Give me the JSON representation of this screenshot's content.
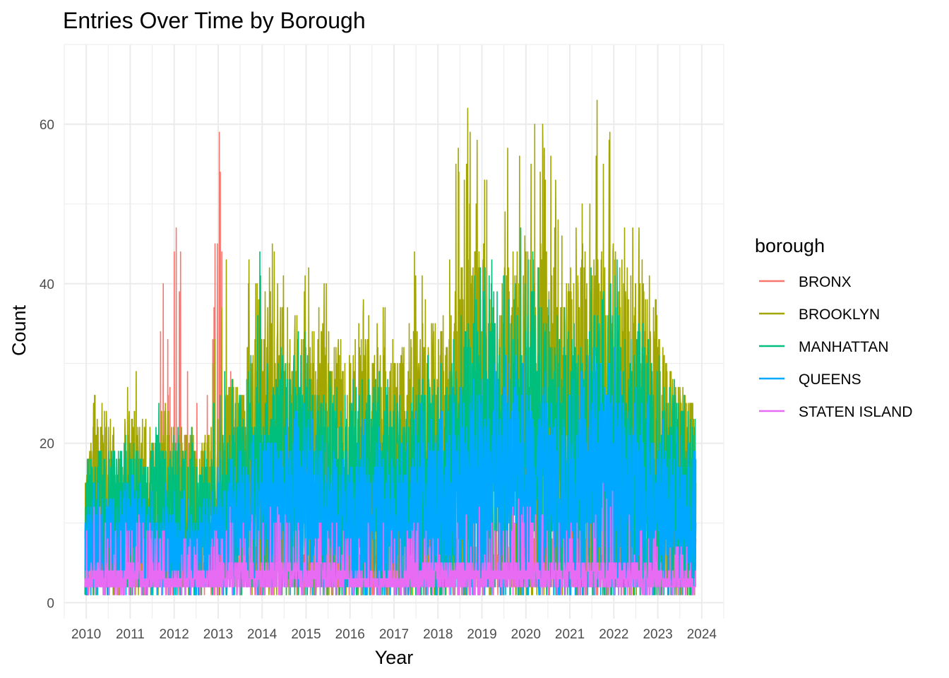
{
  "chart_data": {
    "type": "line",
    "title": "Entries Over Time by Borough",
    "xlabel": "Year",
    "ylabel": "Count",
    "x_range": [
      2009.97,
      2023.87
    ],
    "xlim": [
      2009.5,
      2024.5
    ],
    "ylim": [
      -2,
      70
    ],
    "x_ticks": [
      "2010",
      "2011",
      "2012",
      "2013",
      "2014",
      "2015",
      "2016",
      "2017",
      "2018",
      "2019",
      "2020",
      "2021",
      "2022",
      "2023",
      "2024"
    ],
    "y_ticks": [
      "0",
      "20",
      "40",
      "60"
    ],
    "grid": true,
    "legend": {
      "title": "borough",
      "position": "right"
    },
    "series": [
      {
        "name": "BRONX",
        "color": "#F8766D",
        "min": 1,
        "envelope": [
          13,
          15,
          12,
          12,
          12,
          15,
          21,
          31,
          48,
          57,
          28,
          32,
          40,
          64,
          30,
          24,
          22,
          23,
          26,
          20,
          16,
          19,
          27,
          26,
          22,
          18,
          15,
          17,
          26,
          15,
          14,
          15,
          20,
          22,
          28,
          26,
          24,
          22,
          16,
          15,
          12,
          14,
          10,
          12,
          12,
          14,
          18,
          20,
          22,
          22,
          22,
          26,
          28,
          30,
          36,
          30,
          26,
          24,
          22,
          20
        ],
        "typical": [
          4,
          5,
          4,
          4,
          4,
          5,
          6,
          6,
          6,
          7,
          6,
          6,
          7,
          7,
          7,
          6,
          6,
          6,
          6,
          6,
          5,
          5,
          6,
          6,
          6,
          5,
          5,
          5,
          5,
          5,
          5,
          5,
          5,
          6,
          6,
          6,
          6,
          6,
          6,
          5,
          5,
          5,
          6,
          6,
          6,
          6,
          7,
          7,
          7,
          7,
          7,
          7,
          7,
          7,
          7,
          7,
          7,
          7,
          7,
          6
        ]
      },
      {
        "name": "BROOKLYN",
        "color": "#A3A500",
        "min": 1,
        "envelope": [
          14,
          27,
          26,
          23,
          30,
          30,
          23,
          29,
          25,
          21,
          25,
          18,
          25,
          42,
          57,
          32,
          50,
          35,
          46,
          44,
          43,
          46,
          44,
          40,
          41,
          30,
          39,
          41,
          38,
          41,
          33,
          32,
          47,
          44,
          36,
          43,
          59,
          62,
          58,
          55,
          50,
          67,
          63,
          62,
          63,
          56,
          51,
          44,
          53,
          67,
          65,
          63,
          49,
          52,
          44,
          39,
          30,
          28,
          26,
          24
        ],
        "typical": [
          14,
          17,
          18,
          16,
          18,
          18,
          16,
          17,
          16,
          15,
          16,
          14,
          16,
          18,
          20,
          21,
          24,
          25,
          26,
          27,
          26,
          26,
          25,
          25,
          25,
          22,
          24,
          24,
          24,
          24,
          22,
          22,
          26,
          26,
          25,
          26,
          30,
          32,
          32,
          31,
          30,
          31,
          33,
          34,
          33,
          32,
          30,
          29,
          31,
          33,
          34,
          33,
          31,
          30,
          29,
          27,
          25,
          24,
          22,
          20
        ]
      },
      {
        "name": "MANHATTAN",
        "color": "#00BF7D",
        "min": 1,
        "envelope": [
          19,
          21,
          18,
          20,
          22,
          19,
          17,
          25,
          23,
          22,
          23,
          19,
          21,
          29,
          29,
          26,
          32,
          47,
          30,
          32,
          31,
          36,
          27,
          26,
          30,
          26,
          29,
          29,
          28,
          30,
          28,
          28,
          36,
          33,
          30,
          31,
          38,
          40,
          42,
          44,
          42,
          44,
          47,
          45,
          44,
          42,
          40,
          38,
          42,
          45,
          44,
          44,
          42,
          38,
          35,
          32,
          30,
          28,
          26,
          24
        ],
        "typical": [
          12,
          14,
          15,
          14,
          15,
          16,
          14,
          15,
          14,
          13,
          14,
          12,
          13,
          15,
          16,
          17,
          19,
          20,
          21,
          22,
          21,
          21,
          20,
          20,
          20,
          18,
          19,
          19,
          19,
          19,
          18,
          18,
          21,
          21,
          20,
          21,
          24,
          25,
          26,
          25,
          24,
          25,
          26,
          27,
          26,
          25,
          24,
          23,
          24,
          26,
          27,
          26,
          25,
          24,
          23,
          22,
          20,
          19,
          18,
          16
        ]
      },
      {
        "name": "QUEENS",
        "color": "#00A9FF",
        "min": 1,
        "envelope": [
          12,
          16,
          13,
          15,
          17,
          16,
          14,
          19,
          16,
          14,
          15,
          13,
          14,
          19,
          19,
          20,
          21,
          23,
          24,
          25,
          24,
          25,
          24,
          23,
          24,
          20,
          22,
          23,
          22,
          23,
          21,
          21,
          28,
          26,
          24,
          25,
          29,
          30,
          30,
          31,
          30,
          31,
          32,
          33,
          32,
          31,
          30,
          29,
          30,
          32,
          33,
          32,
          30,
          29,
          28,
          26,
          24,
          23,
          21,
          19
        ],
        "typical": [
          8,
          10,
          10,
          9,
          10,
          11,
          9,
          10,
          9,
          8,
          9,
          8,
          9,
          10,
          11,
          12,
          13,
          14,
          15,
          16,
          15,
          15,
          14,
          14,
          14,
          12,
          13,
          13,
          13,
          13,
          12,
          12,
          15,
          15,
          14,
          15,
          17,
          18,
          19,
          18,
          17,
          18,
          19,
          20,
          19,
          18,
          17,
          16,
          17,
          19,
          20,
          19,
          18,
          17,
          16,
          15,
          14,
          13,
          12,
          11
        ]
      },
      {
        "name": "STATEN ISLAND",
        "color": "#E76BF3",
        "min": 1,
        "envelope": [
          10,
          13,
          12,
          9,
          11,
          12,
          10,
          11,
          9,
          8,
          9,
          8,
          9,
          10,
          12,
          10,
          11,
          10,
          12,
          12,
          11,
          10,
          11,
          10,
          10,
          9,
          9,
          10,
          9,
          10,
          9,
          9,
          10,
          10,
          9,
          10,
          12,
          12,
          13,
          12,
          11,
          12,
          13,
          12,
          12,
          11,
          10,
          10,
          11,
          12,
          17,
          16,
          12,
          11,
          10,
          9,
          8,
          8,
          7,
          6
        ],
        "typical": [
          3,
          4,
          4,
          3,
          4,
          4,
          3,
          4,
          3,
          3,
          3,
          3,
          3,
          4,
          4,
          4,
          4,
          4,
          4,
          4,
          4,
          4,
          4,
          4,
          4,
          3,
          3,
          3,
          3,
          3,
          3,
          3,
          4,
          4,
          4,
          4,
          4,
          4,
          4,
          4,
          4,
          4,
          4,
          4,
          4,
          4,
          4,
          4,
          4,
          4,
          4,
          4,
          4,
          4,
          4,
          4,
          3,
          3,
          3,
          3
        ]
      }
    ]
  }
}
